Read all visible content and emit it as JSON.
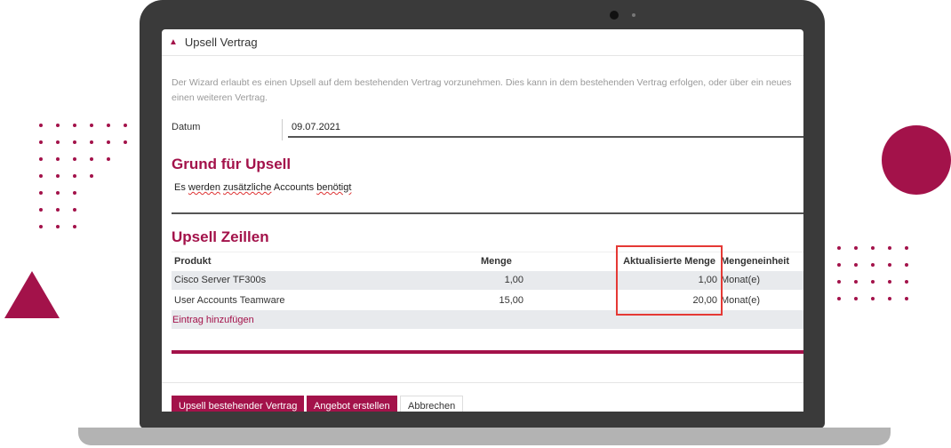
{
  "dialog": {
    "title": "Upsell Vertrag",
    "icon": "gift-icon",
    "description": "Der Wizard erlaubt es einen Upsell auf dem bestehenden Vertrag vorzunehmen. Dies kann in dem bestehenden Vertrag erfolgen, oder über ein neues einen weiteren Vertrag.",
    "date_label": "Datum",
    "date_value": "09.07.2021",
    "reason_heading": "Grund für Upsell",
    "reason_words": [
      "Es",
      "werden",
      "zusätzliche",
      "Accounts",
      "benötigt"
    ],
    "lines_heading": "Upsell Zeillen",
    "columns": [
      "Produkt",
      "Menge",
      "Aktualisierte Menge",
      "Mengeneinheit"
    ],
    "rows": [
      [
        "Cisco Server TF300s",
        "1,00",
        "1,00",
        "Monat(e)"
      ],
      [
        "User Accounts Teamware",
        "15,00",
        "20,00",
        "Monat(e)"
      ]
    ],
    "add_entry": "Eintrag hinzufügen",
    "buttons": {
      "upsell": "Upsell bestehender Vertrag",
      "offer": "Angebot erstellen",
      "cancel": "Abbrechen"
    }
  },
  "colors": {
    "brand": "#a3124a",
    "highlight": "#e53935"
  }
}
